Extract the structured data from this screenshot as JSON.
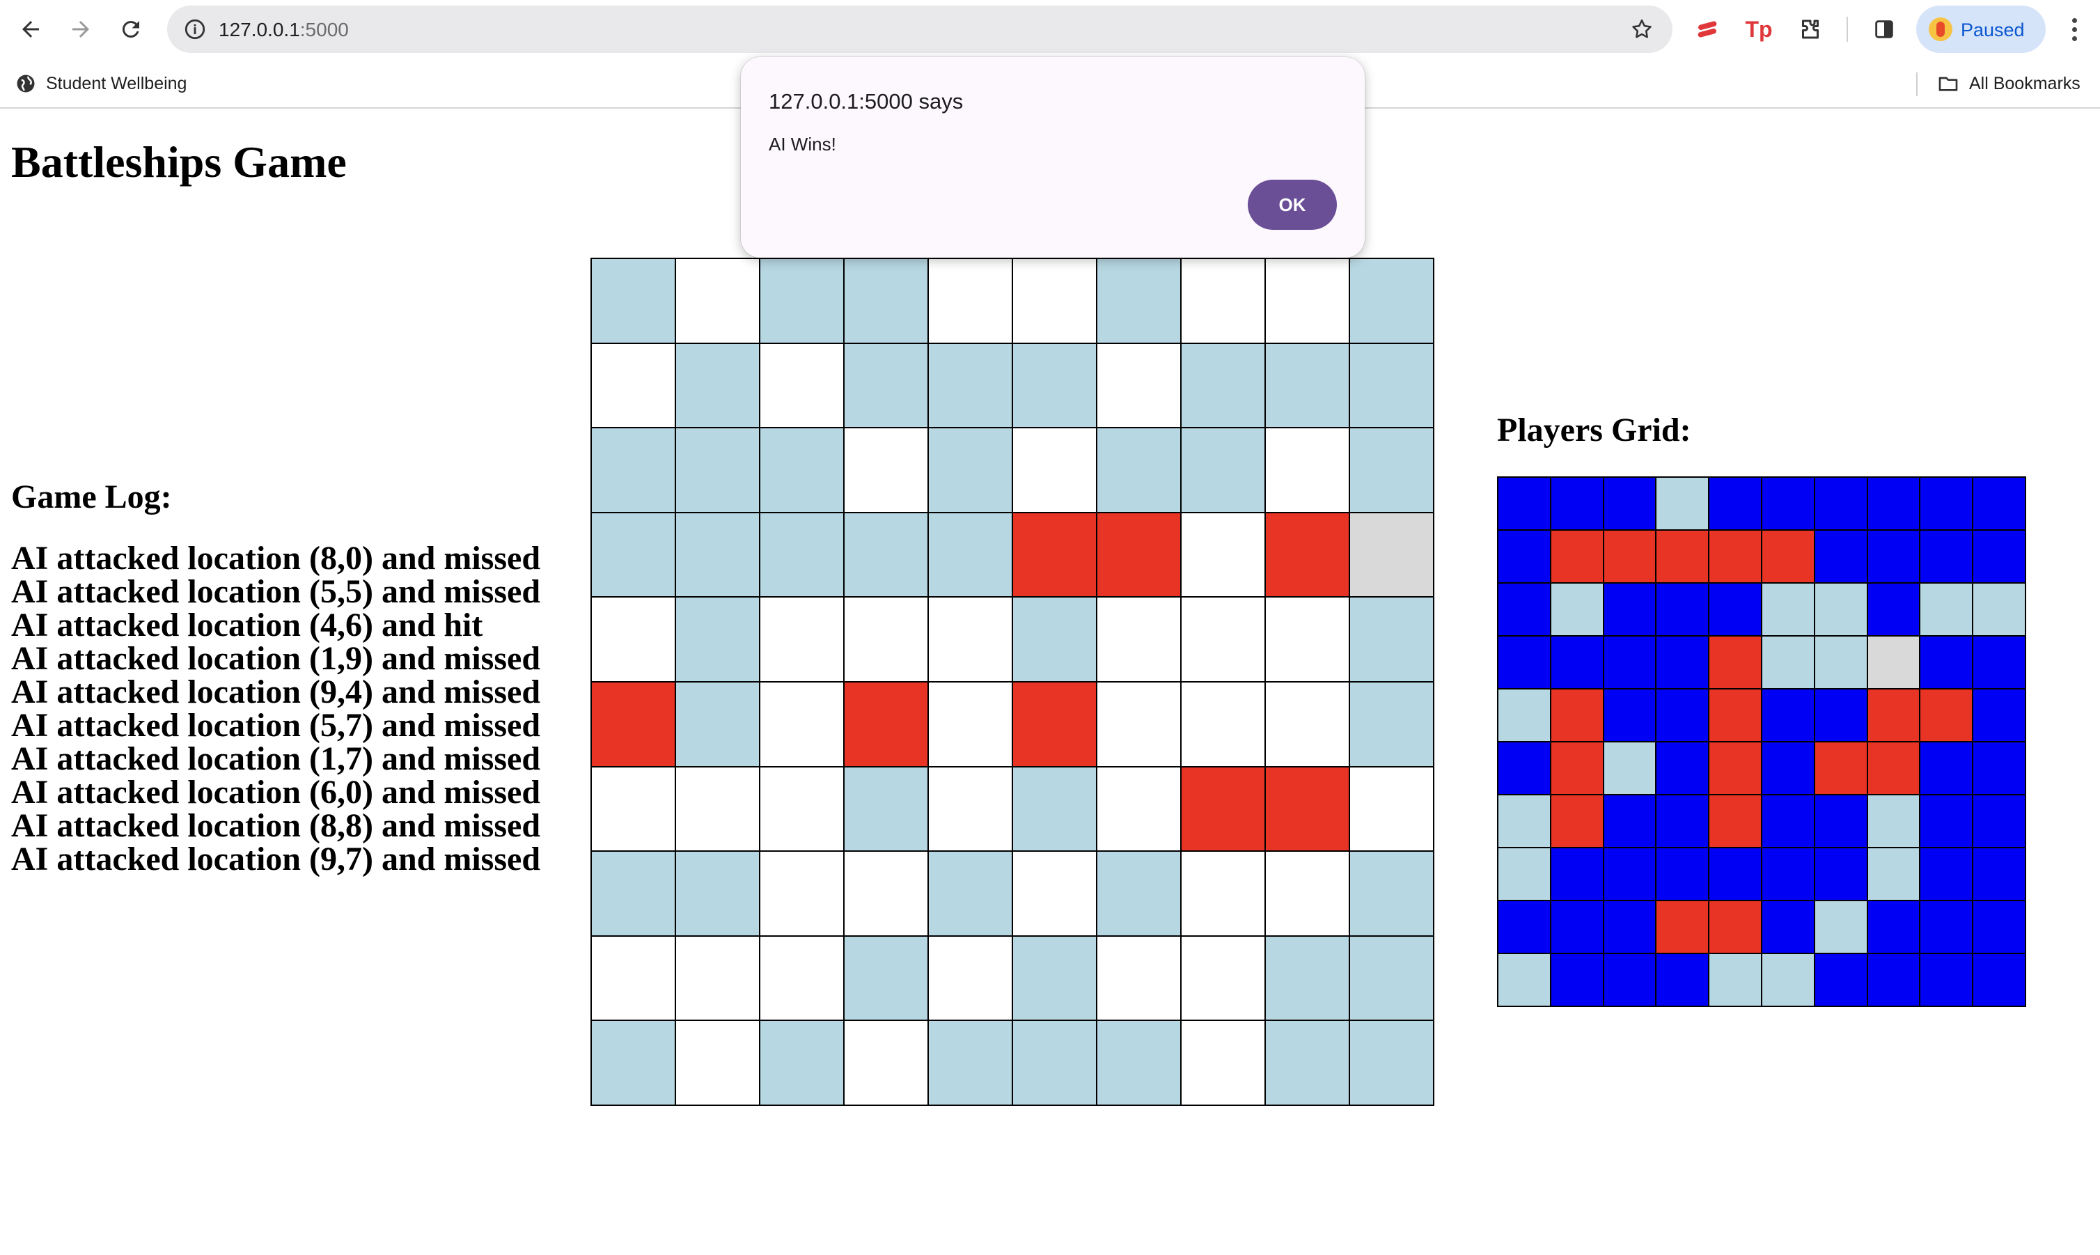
{
  "browser": {
    "url_host": "127.0.0.1",
    "url_port": ":5000",
    "profile_label": "Paused",
    "bookmarks": {
      "student_wellbeing": "Student Wellbeing",
      "all_bookmarks": "All Bookmarks"
    }
  },
  "dialog": {
    "title": "127.0.0.1:5000 says",
    "message": "AI Wins!",
    "ok_label": "OK"
  },
  "page": {
    "title": "Battleships Game",
    "log_heading": "Game Log:",
    "log_entries": [
      "AI attacked location (8,0) and missed",
      "AI attacked location (5,5) and missed",
      "AI attacked location (4,6) and hit",
      "AI attacked location (1,9) and missed",
      "AI attacked location (9,4) and missed",
      "AI attacked location (5,7) and missed",
      "AI attacked location (1,7) and missed",
      "AI attacked location (6,0) and missed",
      "AI attacked location (8,8) and missed",
      "AI attacked location (9,7) and missed"
    ],
    "players_heading": "Players Grid:"
  },
  "colors": {
    "w": "#ffffff",
    "b": "#b7d7e2",
    "r": "#e83424",
    "g": "#d9d9d9",
    "u": "#0000f5"
  },
  "ai_grid": [
    "bwbbwwbwwb",
    "wbwbbbwbbb",
    "bbbwbwbbwb",
    "bbbbbrrwrg",
    "wbwwwbwwwb",
    "rbwrwrwwwb",
    "wwwbwbwrrw",
    "bbwwbwbwwb",
    "wwwbwbwwbb",
    "bwbwbbbwbb"
  ],
  "player_grid": [
    "uuubuuuuuu",
    "urrrrruuuu",
    "ubuuubbubb",
    "uuuurbbguu",
    "bruuruurou",
    "urbururruu",
    "bruuruubuu",
    "buuuuuubuu",
    "uuurrubuuu",
    "buuubbuuuu"
  ]
}
